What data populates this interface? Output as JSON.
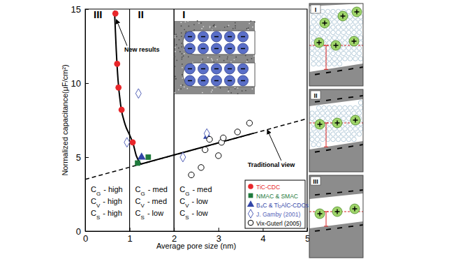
{
  "chart_data": {
    "type": "scatter",
    "xlabel": "Average pore size (nm)",
    "ylabel": "Normalized capacitance(μF/cm²)",
    "xlim": [
      0,
      5
    ],
    "ylim": [
      0,
      15
    ],
    "xticks": [
      0,
      1,
      2,
      3,
      4,
      5
    ],
    "yticks": [
      0,
      5,
      10,
      15
    ],
    "legend": "lower right",
    "series": [
      {
        "name": "TiC-CDC",
        "color": "#e8262a",
        "marker": "circle",
        "x": [
          0.68,
          0.72,
          0.75,
          0.82,
          1.07
        ],
        "values": [
          14.7,
          11.3,
          9.7,
          8.2,
          6.0
        ]
      },
      {
        "name": "NMAC & SMAC",
        "color": "#1f7a3c",
        "marker": "square",
        "x": [
          1.18,
          1.42
        ],
        "values": [
          4.6,
          5.0
        ]
      },
      {
        "name": "B₄C & Ti₂AlC-CDCs",
        "color": "#3346a8",
        "marker": "triangle",
        "x": [
          1.27,
          2.75
        ],
        "values": [
          5.0,
          6.4
        ]
      },
      {
        "name": "J. Gamby (2001)",
        "color": "#5563b8",
        "marker": "hollow-diamond",
        "x": [
          0.94,
          1.2,
          2.2,
          2.74
        ],
        "values": [
          6.0,
          9.3,
          5.0,
          6.6
        ]
      },
      {
        "name": "Vix-Guterl (2005)",
        "color": "#000000",
        "marker": "hollow-circle",
        "x": [
          2.39,
          2.61,
          2.7,
          2.8,
          3.0,
          3.07,
          3.11,
          3.43,
          3.7
        ],
        "values": [
          3.8,
          4.3,
          5.5,
          6.2,
          5.1,
          6.0,
          6.3,
          6.7,
          7.3
        ]
      },
      {
        "type": "line",
        "color": "#000000",
        "line_style": "dashed",
        "x": [
          0,
          5
        ],
        "values": [
          3.5,
          7.6
        ]
      },
      {
        "type": "line",
        "color": "#000000",
        "line_style": "solid",
        "x": [
          1.25,
          3.8
        ],
        "values": [
          4.53,
          6.62
        ]
      },
      {
        "type": "line",
        "color": "#000000",
        "line_style": "solid",
        "x": [
          0.66,
          0.7,
          0.74,
          0.8,
          0.9,
          1.0,
          1.08,
          1.15,
          1.25
        ],
        "values": [
          14.9,
          12.2,
          10.2,
          8.5,
          7.2,
          6.5,
          5.9,
          5.1,
          4.55
        ]
      }
    ],
    "regions": [
      {
        "label": "III",
        "from": 0,
        "to": 1,
        "descriptors": [
          {
            "symbol": "C",
            "sub": "G",
            "text": "- high"
          },
          {
            "symbol": "C",
            "sub": "V",
            "text": "- high"
          },
          {
            "symbol": "C",
            "sub": "S",
            "text": "- high"
          }
        ]
      },
      {
        "label": "II",
        "from": 1,
        "to": 2,
        "descriptors": [
          {
            "symbol": "C",
            "sub": "G",
            "text": "- med"
          },
          {
            "symbol": "C",
            "sub": "V",
            "text": "- med"
          },
          {
            "symbol": "C",
            "sub": "S",
            "text": "- low"
          }
        ]
      },
      {
        "label": "I",
        "from": 2,
        "to": 5,
        "descriptors": [
          {
            "symbol": "C",
            "sub": "G",
            "text": "- med"
          },
          {
            "symbol": "C",
            "sub": "V",
            "text": "- low"
          },
          {
            "symbol": "C",
            "sub": "S",
            "text": "- low"
          }
        ]
      }
    ],
    "annotations": [
      {
        "text": "New results",
        "x": 0.88,
        "y": 12.1,
        "arrow_x": 0.7,
        "arrow_y": 14.3
      },
      {
        "text": "Traditional view",
        "x": 3.66,
        "y": 4.35,
        "arrow_x": 4.1,
        "arrow_y": 6.85
      }
    ],
    "panels": [
      "I",
      "II",
      "III"
    ]
  }
}
